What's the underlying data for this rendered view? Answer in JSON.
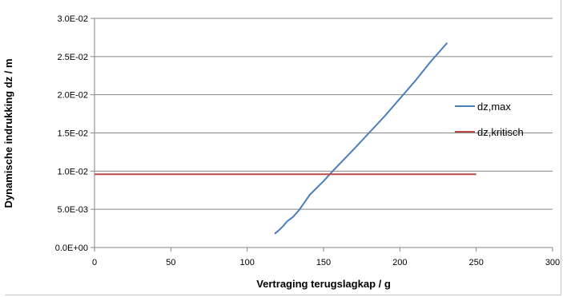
{
  "chart_data": {
    "type": "line",
    "title": "",
    "xlabel": "Vertraging terugslagkap / g",
    "ylabel": "Dynamische indrukking dz / m",
    "xlim": [
      0,
      300
    ],
    "ylim": [
      0,
      0.03
    ],
    "x_ticks": [
      0,
      50,
      100,
      150,
      200,
      250,
      300
    ],
    "x_tick_labels": [
      "0",
      "50",
      "100",
      "150",
      "200",
      "250",
      "300"
    ],
    "y_ticks": [
      0,
      0.005,
      0.01,
      0.015,
      0.02,
      0.025,
      0.03
    ],
    "y_tick_labels": [
      "0.0E+00",
      "5.0E-03",
      "1.0E-02",
      "1.5E-02",
      "2.0E-02",
      "2.5E-02",
      "3.0E-02"
    ],
    "grid": "horizontal",
    "legend_position": "right",
    "series": [
      {
        "name": "dz,max",
        "color": "#4a7ebb",
        "x": [
          118,
          121,
          124,
          126,
          130,
          134,
          141,
          150,
          156,
          170,
          190,
          210,
          220,
          231
        ],
        "y": [
          0.0018,
          0.0023,
          0.0029,
          0.0034,
          0.004,
          0.0049,
          0.0069,
          0.0087,
          0.01,
          0.0129,
          0.0172,
          0.0218,
          0.0243,
          0.0268
        ]
      },
      {
        "name": "dz,kritisch",
        "color": "#be4b48",
        "x": [
          0,
          250
        ],
        "y": [
          0.0096,
          0.0096
        ]
      }
    ]
  }
}
